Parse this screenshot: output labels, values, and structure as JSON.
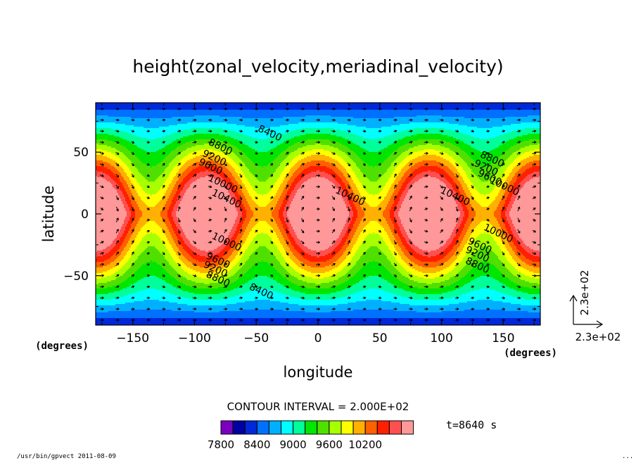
{
  "chart_data": {
    "type": "contour",
    "title": "height(zonal_velocity,meriadinal_velocity)",
    "xlabel": "longitude",
    "ylabel": "latitude",
    "x_unit_label": "(degrees)",
    "y_unit_label": "(degrees)",
    "xlim": [
      -180,
      180
    ],
    "ylim": [
      -90,
      90
    ],
    "x_ticks": [
      -150,
      -100,
      -50,
      0,
      50,
      100,
      150
    ],
    "y_ticks": [
      50,
      0,
      -50
    ],
    "contour_interval_text": "CONTOUR INTERVAL = 2.000E+02",
    "time_text": "t=8640 s",
    "vector_ref_x_label": "2.3e+02",
    "vector_ref_y_label": "2.3e+02",
    "contour_labels": [
      {
        "text": "8400",
        "lon": -40,
        "lat": 63
      },
      {
        "text": "8800",
        "lon": -80,
        "lat": 52
      },
      {
        "text": "9200",
        "lon": -85,
        "lat": 43
      },
      {
        "text": "9600",
        "lon": -88,
        "lat": 36
      },
      {
        "text": "10000",
        "lon": -78,
        "lat": 22
      },
      {
        "text": "10400",
        "lon": -75,
        "lat": 10
      },
      {
        "text": "10400",
        "lon": 25,
        "lat": 12
      },
      {
        "text": "10400",
        "lon": 110,
        "lat": 12
      },
      {
        "text": "8800",
        "lon": 140,
        "lat": 42
      },
      {
        "text": "9200",
        "lon": 135,
        "lat": 35
      },
      {
        "text": "9600",
        "lon": 138,
        "lat": 27
      },
      {
        "text": "10000",
        "lon": 150,
        "lat": 20
      },
      {
        "text": "10000",
        "lon": -75,
        "lat": -25
      },
      {
        "text": "9600",
        "lon": -82,
        "lat": -40
      },
      {
        "text": "9200",
        "lon": -84,
        "lat": -47
      },
      {
        "text": "8800",
        "lon": -82,
        "lat": -55
      },
      {
        "text": "8400",
        "lon": -47,
        "lat": -65
      },
      {
        "text": "10000",
        "lon": 145,
        "lat": -18
      },
      {
        "text": "9600",
        "lon": 130,
        "lat": -28
      },
      {
        "text": "9200",
        "lon": 128,
        "lat": -35
      },
      {
        "text": "8800",
        "lon": 128,
        "lat": -44
      }
    ],
    "colorbar": {
      "colors": [
        "#7a00c0",
        "#0000a0",
        "#0028d8",
        "#0070ff",
        "#00b0ff",
        "#00ffff",
        "#00ff9a",
        "#00e600",
        "#50e000",
        "#a8ff00",
        "#ffff00",
        "#ffb000",
        "#ff6000",
        "#ff2000",
        "#ff5050",
        "#ff9898"
      ],
      "tick_labels": [
        "7800",
        "8400",
        "9000",
        "9600",
        "10200"
      ]
    },
    "footer_left": "/usr/bin/gpvect  2011-08-09",
    "footer_right": "..."
  }
}
